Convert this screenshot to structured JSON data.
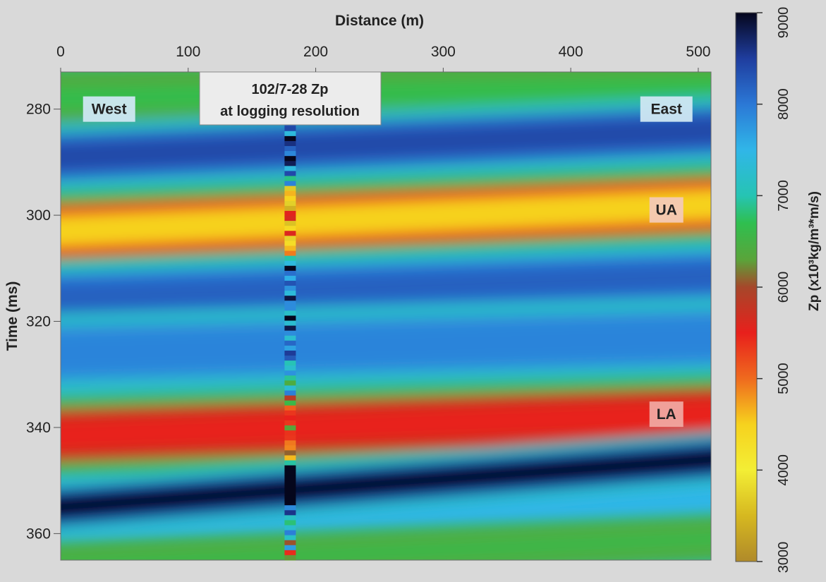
{
  "chart_data": {
    "type": "heatmap",
    "xlabel": "Distance (m)",
    "ylabel": "Time (ms)",
    "xlim": [
      0,
      510
    ],
    "ylim": [
      273,
      365
    ],
    "x_ticks": [
      0,
      100,
      200,
      300,
      400,
      500
    ],
    "y_ticks": [
      280,
      300,
      320,
      340,
      360
    ],
    "colorbar": {
      "label": "Zp (x10³kg/m³*m/s)",
      "range": [
        3000,
        9000
      ],
      "ticks": [
        3000,
        4000,
        5000,
        6000,
        7000,
        8000,
        9000
      ],
      "stops": [
        {
          "value": 3000,
          "color": "#b08a2a"
        },
        {
          "value": 3500,
          "color": "#d6b820"
        },
        {
          "value": 4000,
          "color": "#f3ee35"
        },
        {
          "value": 4500,
          "color": "#f6d21e"
        },
        {
          "value": 5000,
          "color": "#ef6a1e"
        },
        {
          "value": 5500,
          "color": "#e8201c"
        },
        {
          "value": 6000,
          "color": "#a6472a"
        },
        {
          "value": 6300,
          "color": "#5aa43a"
        },
        {
          "value": 6700,
          "color": "#2fbf4f"
        },
        {
          "value": 7000,
          "color": "#26c4b3"
        },
        {
          "value": 7500,
          "color": "#30b6e8"
        },
        {
          "value": 8000,
          "color": "#2b78d6"
        },
        {
          "value": 8500,
          "color": "#1f3d9e"
        },
        {
          "value": 9000,
          "color": "#05061c"
        }
      ]
    },
    "well": {
      "x": 180,
      "label": [
        "102/7-28 Zp",
        "at logging resolution"
      ]
    },
    "annotations": [
      {
        "text": "West",
        "x": 38,
        "y": 280
      },
      {
        "text": "East",
        "x": 475,
        "y": 280
      },
      {
        "text": "UA",
        "x": 475,
        "y": 299
      },
      {
        "text": "LA",
        "x": 475,
        "y": 337.5
      }
    ],
    "layers": [
      {
        "name": "top-green",
        "t_west": 278,
        "t_east": 276,
        "thickness": 7,
        "value": 6650
      },
      {
        "name": "upper-blue",
        "t_west": 289,
        "t_east": 284,
        "thickness": 7,
        "value": 8400
      },
      {
        "name": "UA",
        "t_west": 303,
        "t_east": 298,
        "thickness": 8,
        "value": 4500
      },
      {
        "name": "mid-blue-1",
        "t_west": 315.5,
        "t_east": 311.5,
        "thickness": 7,
        "value": 8200
      },
      {
        "name": "mid-blue-2",
        "t_west": 326,
        "t_east": 323,
        "thickness": 8,
        "value": 7900
      },
      {
        "name": "LA",
        "t_west": 341.5,
        "t_east": 337.5,
        "thickness": 8,
        "value": 5500
      },
      {
        "name": "black-low",
        "t_west": 355,
        "t_east": 346,
        "thickness": 5.5,
        "value": 9000
      },
      {
        "name": "bottom-green",
        "t_west": 366,
        "t_east": 361,
        "thickness": 5,
        "value": 6600
      }
    ]
  }
}
